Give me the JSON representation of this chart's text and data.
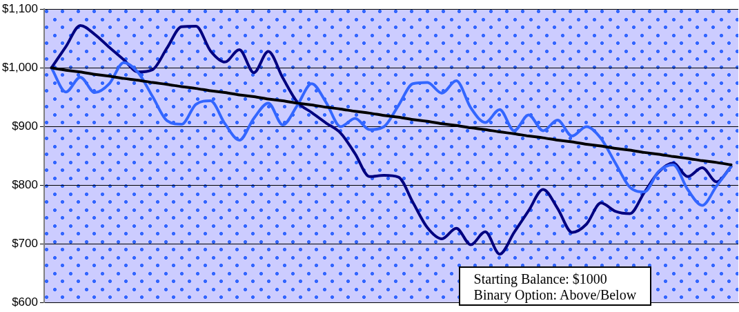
{
  "chart_data": {
    "type": "line",
    "categories": [
      null,
      null,
      null,
      null,
      null,
      null,
      null,
      null,
      null,
      null,
      null,
      null,
      null,
      null,
      null,
      null,
      null,
      null,
      null,
      null,
      null,
      null,
      null,
      null,
      null,
      null,
      null,
      null,
      null,
      null,
      null,
      null,
      null,
      null,
      null,
      null,
      null,
      null,
      null,
      null,
      null,
      null,
      null,
      null,
      null,
      null,
      null,
      null
    ],
    "series": [
      {
        "color": "#000080",
        "values": [
          1000,
          1036,
          1072,
          1057,
          1035,
          1014,
          993,
          997,
          1034,
          1070,
          1071,
          1029,
          1010,
          1031,
          992,
          1028,
          983,
          942,
          924,
          906,
          889,
          854,
          815,
          817,
          814,
          771,
          728,
          709,
          727,
          699,
          721,
          683,
          720,
          757,
          793,
          761,
          720,
          734,
          770,
          756,
          752,
          788,
          823,
          838,
          815,
          830,
          806,
          832
        ]
      },
      {
        "color": "#3366ff",
        "values": [
          1000,
          959,
          984,
          958,
          973,
          1009,
          992,
          951,
          910,
          904,
          938,
          944,
          905,
          877,
          914,
          940,
          903,
          936,
          973,
          941,
          900,
          914,
          895,
          900,
          936,
          973,
          975,
          957,
          978,
          932,
          907,
          929,
          893,
          920,
          893,
          911,
          884,
          900,
          880,
          838,
          797,
          789,
          824,
          835,
          793,
          766,
          799,
          832
        ]
      },
      {
        "color": "#000000",
        "values": [
          1000,
          996,
          993,
          989,
          986,
          982,
          979,
          975,
          972,
          968,
          965,
          961,
          958,
          954,
          951,
          947,
          944,
          940,
          937,
          933,
          930,
          926,
          923,
          919,
          916,
          912,
          909,
          905,
          902,
          898,
          895,
          891,
          888,
          884,
          881,
          877,
          874,
          870,
          867,
          863,
          860,
          856,
          853,
          849,
          846,
          842,
          839,
          835
        ]
      }
    ],
    "ylim": [
      600,
      1100
    ],
    "yticks": [
      {
        "value": 600,
        "label": "$600"
      },
      {
        "value": 700,
        "label": "$700"
      },
      {
        "value": 800,
        "label": "$800"
      },
      {
        "value": 900,
        "label": "$900"
      },
      {
        "value": 1000,
        "label": "$1,000"
      },
      {
        "value": 1100,
        "label": "$1,100"
      }
    ],
    "tick_labels": "y",
    "grid": "y",
    "legend": false,
    "marker": "none",
    "line_style": "solid",
    "annotations": [
      "Starting Balance: $1000",
      "Binary Option: Above/Below"
    ]
  }
}
